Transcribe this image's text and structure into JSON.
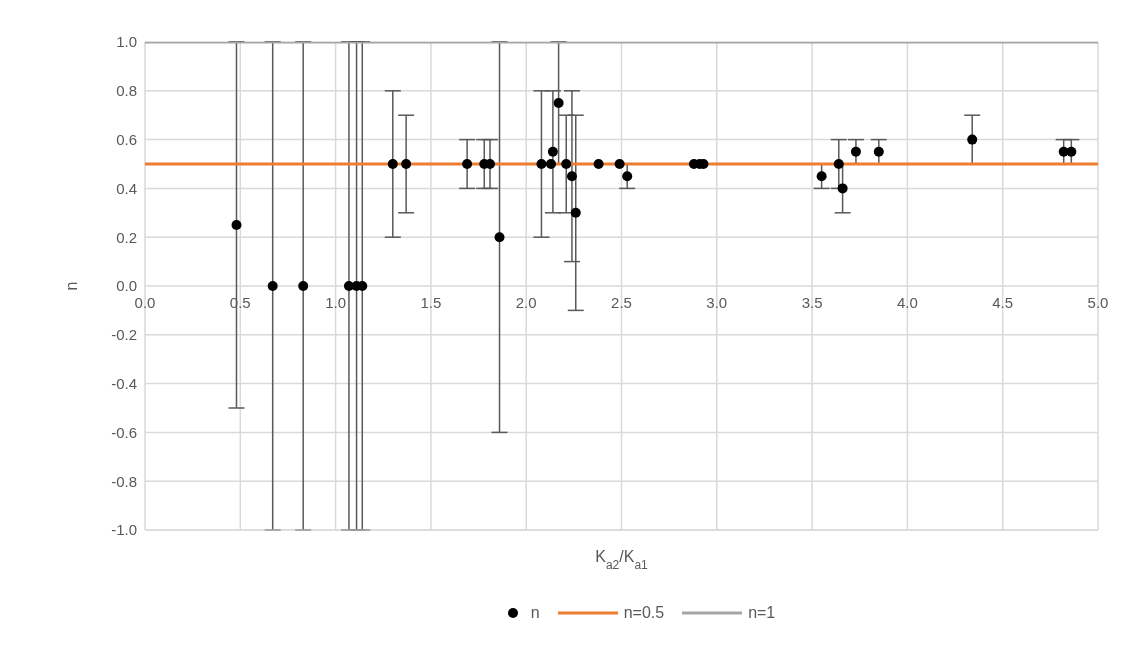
{
  "chart_data": {
    "type": "scatter",
    "xlabel": "K$_{a2}$/K$_{a1}$",
    "ylabel": "n",
    "xlim": [
      0,
      5
    ],
    "xticks": [
      {
        "value": 0,
        "label": "0.0"
      },
      {
        "value": 0.5,
        "label": "0.5"
      },
      {
        "value": 1,
        "label": "1.0"
      },
      {
        "value": 1.5,
        "label": "1.5"
      },
      {
        "value": 2,
        "label": "2.0"
      },
      {
        "value": 2.5,
        "label": "2.5"
      },
      {
        "value": 3,
        "label": "3.0"
      },
      {
        "value": 3.5,
        "label": "3.5"
      },
      {
        "value": 4,
        "label": "4.0"
      },
      {
        "value": 4.5,
        "label": "4.5"
      },
      {
        "value": 5,
        "label": "5.0"
      }
    ],
    "ylim": [
      -1,
      1
    ],
    "yticks": [
      {
        "value": -1,
        "label": "-1.0"
      },
      {
        "value": -0.8,
        "label": "-0.8"
      },
      {
        "value": -0.6,
        "label": "-0.6"
      },
      {
        "value": -0.4,
        "label": "-0.4"
      },
      {
        "value": -0.2,
        "label": "-0.2"
      },
      {
        "value": 0,
        "label": "0.0"
      },
      {
        "value": 0.2,
        "label": "0.2"
      },
      {
        "value": 0.4,
        "label": "0.4"
      },
      {
        "value": 0.6,
        "label": "0.6"
      },
      {
        "value": 0.8,
        "label": "0.8"
      },
      {
        "value": 1,
        "label": "1.0"
      }
    ],
    "grid": true,
    "legend": "bottom",
    "marker": "circle",
    "series": [
      {
        "name": "n",
        "color": "#000000",
        "x": [
          0.48,
          0.67,
          0.83,
          1.07,
          1.11,
          1.14,
          1.3,
          1.37,
          1.69,
          1.78,
          1.81,
          1.86,
          2.08,
          2.13,
          2.14,
          2.17,
          2.21,
          2.24,
          2.26,
          2.38,
          2.49,
          2.53,
          2.88,
          2.91,
          2.93,
          3.55,
          3.64,
          3.66,
          3.73,
          3.85,
          4.34,
          4.82,
          4.86
        ],
        "values": [
          0.25,
          0,
          0,
          0,
          0,
          0,
          0.5,
          0.5,
          0.5,
          0.5,
          0.5,
          0.2,
          0.5,
          0.5,
          0.55,
          0.75,
          0.5,
          0.45,
          0.3,
          0.5,
          0.5,
          0.45,
          0.5,
          0.5,
          0.5,
          0.45,
          0.5,
          0.4,
          0.55,
          0.55,
          0.6,
          0.55,
          0.55
        ],
        "errors": [
          0.75,
          1,
          1,
          1,
          1,
          1,
          0.3,
          0.2,
          0.1,
          0.1,
          0.1,
          0.8,
          0.3,
          null,
          0.25,
          0.25,
          0.2,
          0.35,
          0.4,
          null,
          null,
          0.05,
          null,
          null,
          null,
          0.05,
          0.1,
          0.1,
          0.05,
          0.05,
          0.1,
          0.05,
          0.05
        ]
      },
      {
        "name": "n=0.5",
        "type": "line",
        "marker": "none",
        "color": "#ed7d31",
        "x": [
          0,
          5
        ],
        "values": [
          0.5,
          0.5
        ]
      },
      {
        "name": "n=1",
        "type": "line",
        "marker": "none",
        "color": "#a5a5a5",
        "x": [
          0,
          5
        ],
        "values": [
          1,
          1
        ]
      }
    ]
  }
}
